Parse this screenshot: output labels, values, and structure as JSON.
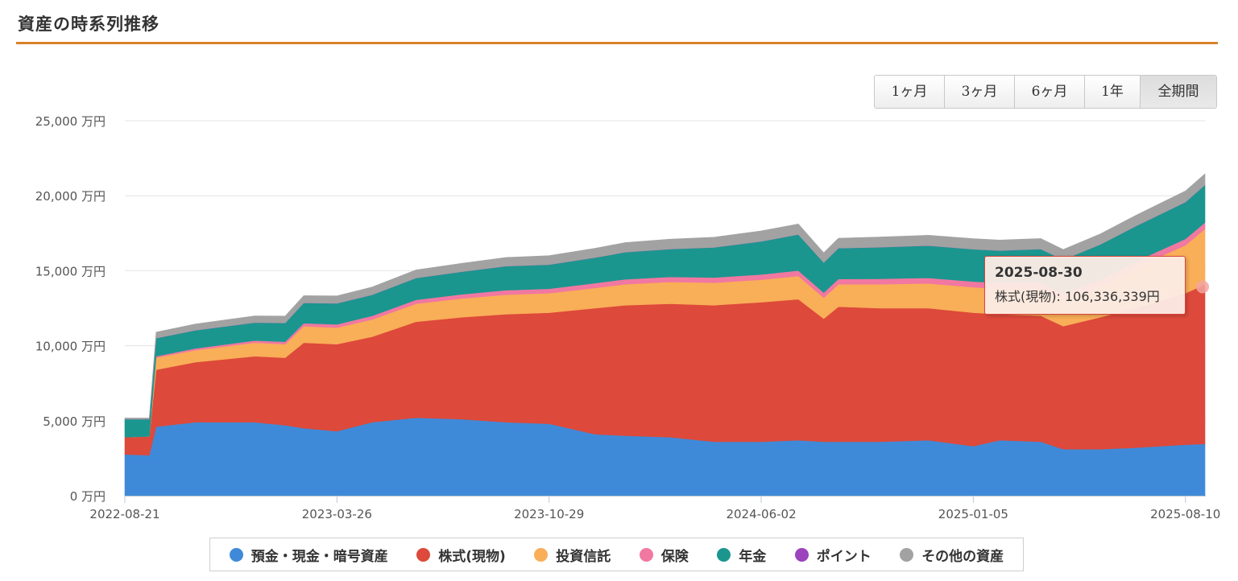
{
  "page": {
    "title": "資産の時系列推移"
  },
  "range_buttons": [
    {
      "label": "1ヶ月",
      "active": false
    },
    {
      "label": "3ヶ月",
      "active": false
    },
    {
      "label": "6ヶ月",
      "active": false
    },
    {
      "label": "1年",
      "active": false
    },
    {
      "label": "全期間",
      "active": true
    }
  ],
  "tooltip": {
    "date": "2025-08-30",
    "series_name": "株式(現物)",
    "value_text": "106,336,339円"
  },
  "chart_data": {
    "type": "area",
    "stacked": true,
    "y_unit_suffix": " 万円",
    "ylim": [
      0,
      25000
    ],
    "yticks": [
      "0 万円",
      "5,000 万円",
      "10,000 万円",
      "15,000 万円",
      "20,000 万円",
      "25,000 万円"
    ],
    "ytick_values": [
      0,
      5000,
      10000,
      15000,
      20000,
      25000
    ],
    "xticks": [
      "2022-08-21",
      "2023-03-26",
      "2023-10-29",
      "2024-06-02",
      "2025-01-05",
      "2025-08-10"
    ],
    "x": [
      "2022-08-21",
      "2022-09-15",
      "2022-09-22",
      "2022-11-01",
      "2023-01-01",
      "2023-02-01",
      "2023-02-20",
      "2023-03-26",
      "2023-05-01",
      "2023-06-15",
      "2023-08-01",
      "2023-09-15",
      "2023-10-29",
      "2023-12-15",
      "2024-01-15",
      "2024-03-01",
      "2024-04-15",
      "2024-06-02",
      "2024-07-10",
      "2024-08-05",
      "2024-08-20",
      "2024-10-01",
      "2024-11-20",
      "2025-01-05",
      "2025-02-01",
      "2025-03-15",
      "2025-04-07",
      "2025-05-15",
      "2025-06-20",
      "2025-08-10",
      "2025-08-30"
    ],
    "series": [
      {
        "name": "預金・現金・暗号資産",
        "color": "#3f8ad8",
        "values": [
          2750,
          2700,
          4600,
          4900,
          4900,
          4700,
          4500,
          4300,
          4900,
          5200,
          5100,
          4900,
          4800,
          4100,
          4000,
          3900,
          3600,
          3600,
          3700,
          3600,
          3600,
          3600,
          3700,
          3300,
          3700,
          3600,
          3100,
          3100,
          3200,
          3400,
          3450
        ]
      },
      {
        "name": "株式(現物)",
        "color": "#dd493a",
        "values": [
          1150,
          1250,
          3800,
          4000,
          4400,
          4500,
          5700,
          5800,
          5700,
          6400,
          6800,
          7200,
          7400,
          8400,
          8700,
          8900,
          9100,
          9300,
          9400,
          8200,
          9000,
          8900,
          8800,
          8900,
          8400,
          8400,
          8200,
          8800,
          9300,
          10100,
          10634
        ]
      },
      {
        "name": "投資信託",
        "color": "#f9ae58",
        "values": [
          0,
          0,
          800,
          800,
          900,
          900,
          1100,
          1100,
          1150,
          1200,
          1250,
          1300,
          1300,
          1350,
          1400,
          1450,
          1500,
          1500,
          1550,
          1400,
          1500,
          1600,
          1650,
          1700,
          1700,
          1800,
          1800,
          2100,
          2700,
          3200,
          3700
        ]
      },
      {
        "name": "保険",
        "color": "#f178a1",
        "values": [
          0,
          0,
          100,
          120,
          140,
          160,
          200,
          220,
          240,
          260,
          280,
          300,
          300,
          320,
          330,
          340,
          350,
          350,
          360,
          340,
          350,
          360,
          370,
          380,
          390,
          390,
          380,
          400,
          410,
          420,
          430
        ]
      },
      {
        "name": "年金",
        "color": "#1a968f",
        "values": [
          1200,
          1150,
          1200,
          1200,
          1200,
          1250,
          1350,
          1400,
          1400,
          1450,
          1500,
          1600,
          1600,
          1700,
          1800,
          1850,
          2000,
          2200,
          2400,
          2000,
          2050,
          2100,
          2150,
          2150,
          2150,
          2250,
          2250,
          2350,
          2350,
          2450,
          2500
        ]
      },
      {
        "name": "ポイント",
        "color": "#9b44bd",
        "values": [
          0,
          0,
          5,
          5,
          5,
          5,
          5,
          5,
          5,
          5,
          5,
          5,
          5,
          5,
          5,
          5,
          5,
          5,
          5,
          5,
          5,
          5,
          5,
          5,
          5,
          5,
          5,
          5,
          5,
          5,
          5
        ]
      },
      {
        "name": "その他の資産",
        "color": "#a2a2a2",
        "values": [
          80,
          80,
          400,
          420,
          440,
          460,
          480,
          500,
          520,
          540,
          560,
          580,
          600,
          620,
          640,
          660,
          680,
          700,
          700,
          650,
          660,
          680,
          690,
          700,
          700,
          700,
          680,
          700,
          720,
          740,
          740
        ]
      }
    ]
  }
}
